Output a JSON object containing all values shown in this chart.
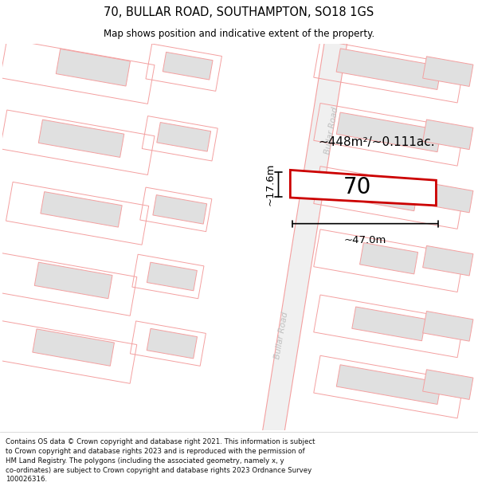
{
  "title_line1": "70, BULLAR ROAD, SOUTHAMPTON, SO18 1GS",
  "title_line2": "Map shows position and indicative extent of the property.",
  "footer_text": "Contains OS data © Crown copyright and database right 2021. This information is subject to Crown copyright and database rights 2023 and is reproduced with the permission of HM Land Registry. The polygons (including the associated geometry, namely x, y co-ordinates) are subject to Crown copyright and database rights 2023 Ordnance Survey 100026316.",
  "area_label": "~448m²/~0.111ac.",
  "width_label": "~47.0m",
  "height_label": "~17.6m",
  "property_number": "70",
  "bg_color": "#ffffff",
  "map_bg": "#ffffff",
  "bld_fill": "#e0e0e0",
  "bld_edge": "#f4a0a0",
  "plot_edge": "#cc0000",
  "plot_fill": "#ffffff",
  "road_edge": "#f4a0a0",
  "road_fill": "#f8f8f8",
  "road_text_color": "#c0c0c0",
  "title_fontsize": 10.5,
  "subtitle_fontsize": 8.5,
  "footer_fontsize": 6.2,
  "annot_fontsize": 11,
  "prop_num_fontsize": 20
}
